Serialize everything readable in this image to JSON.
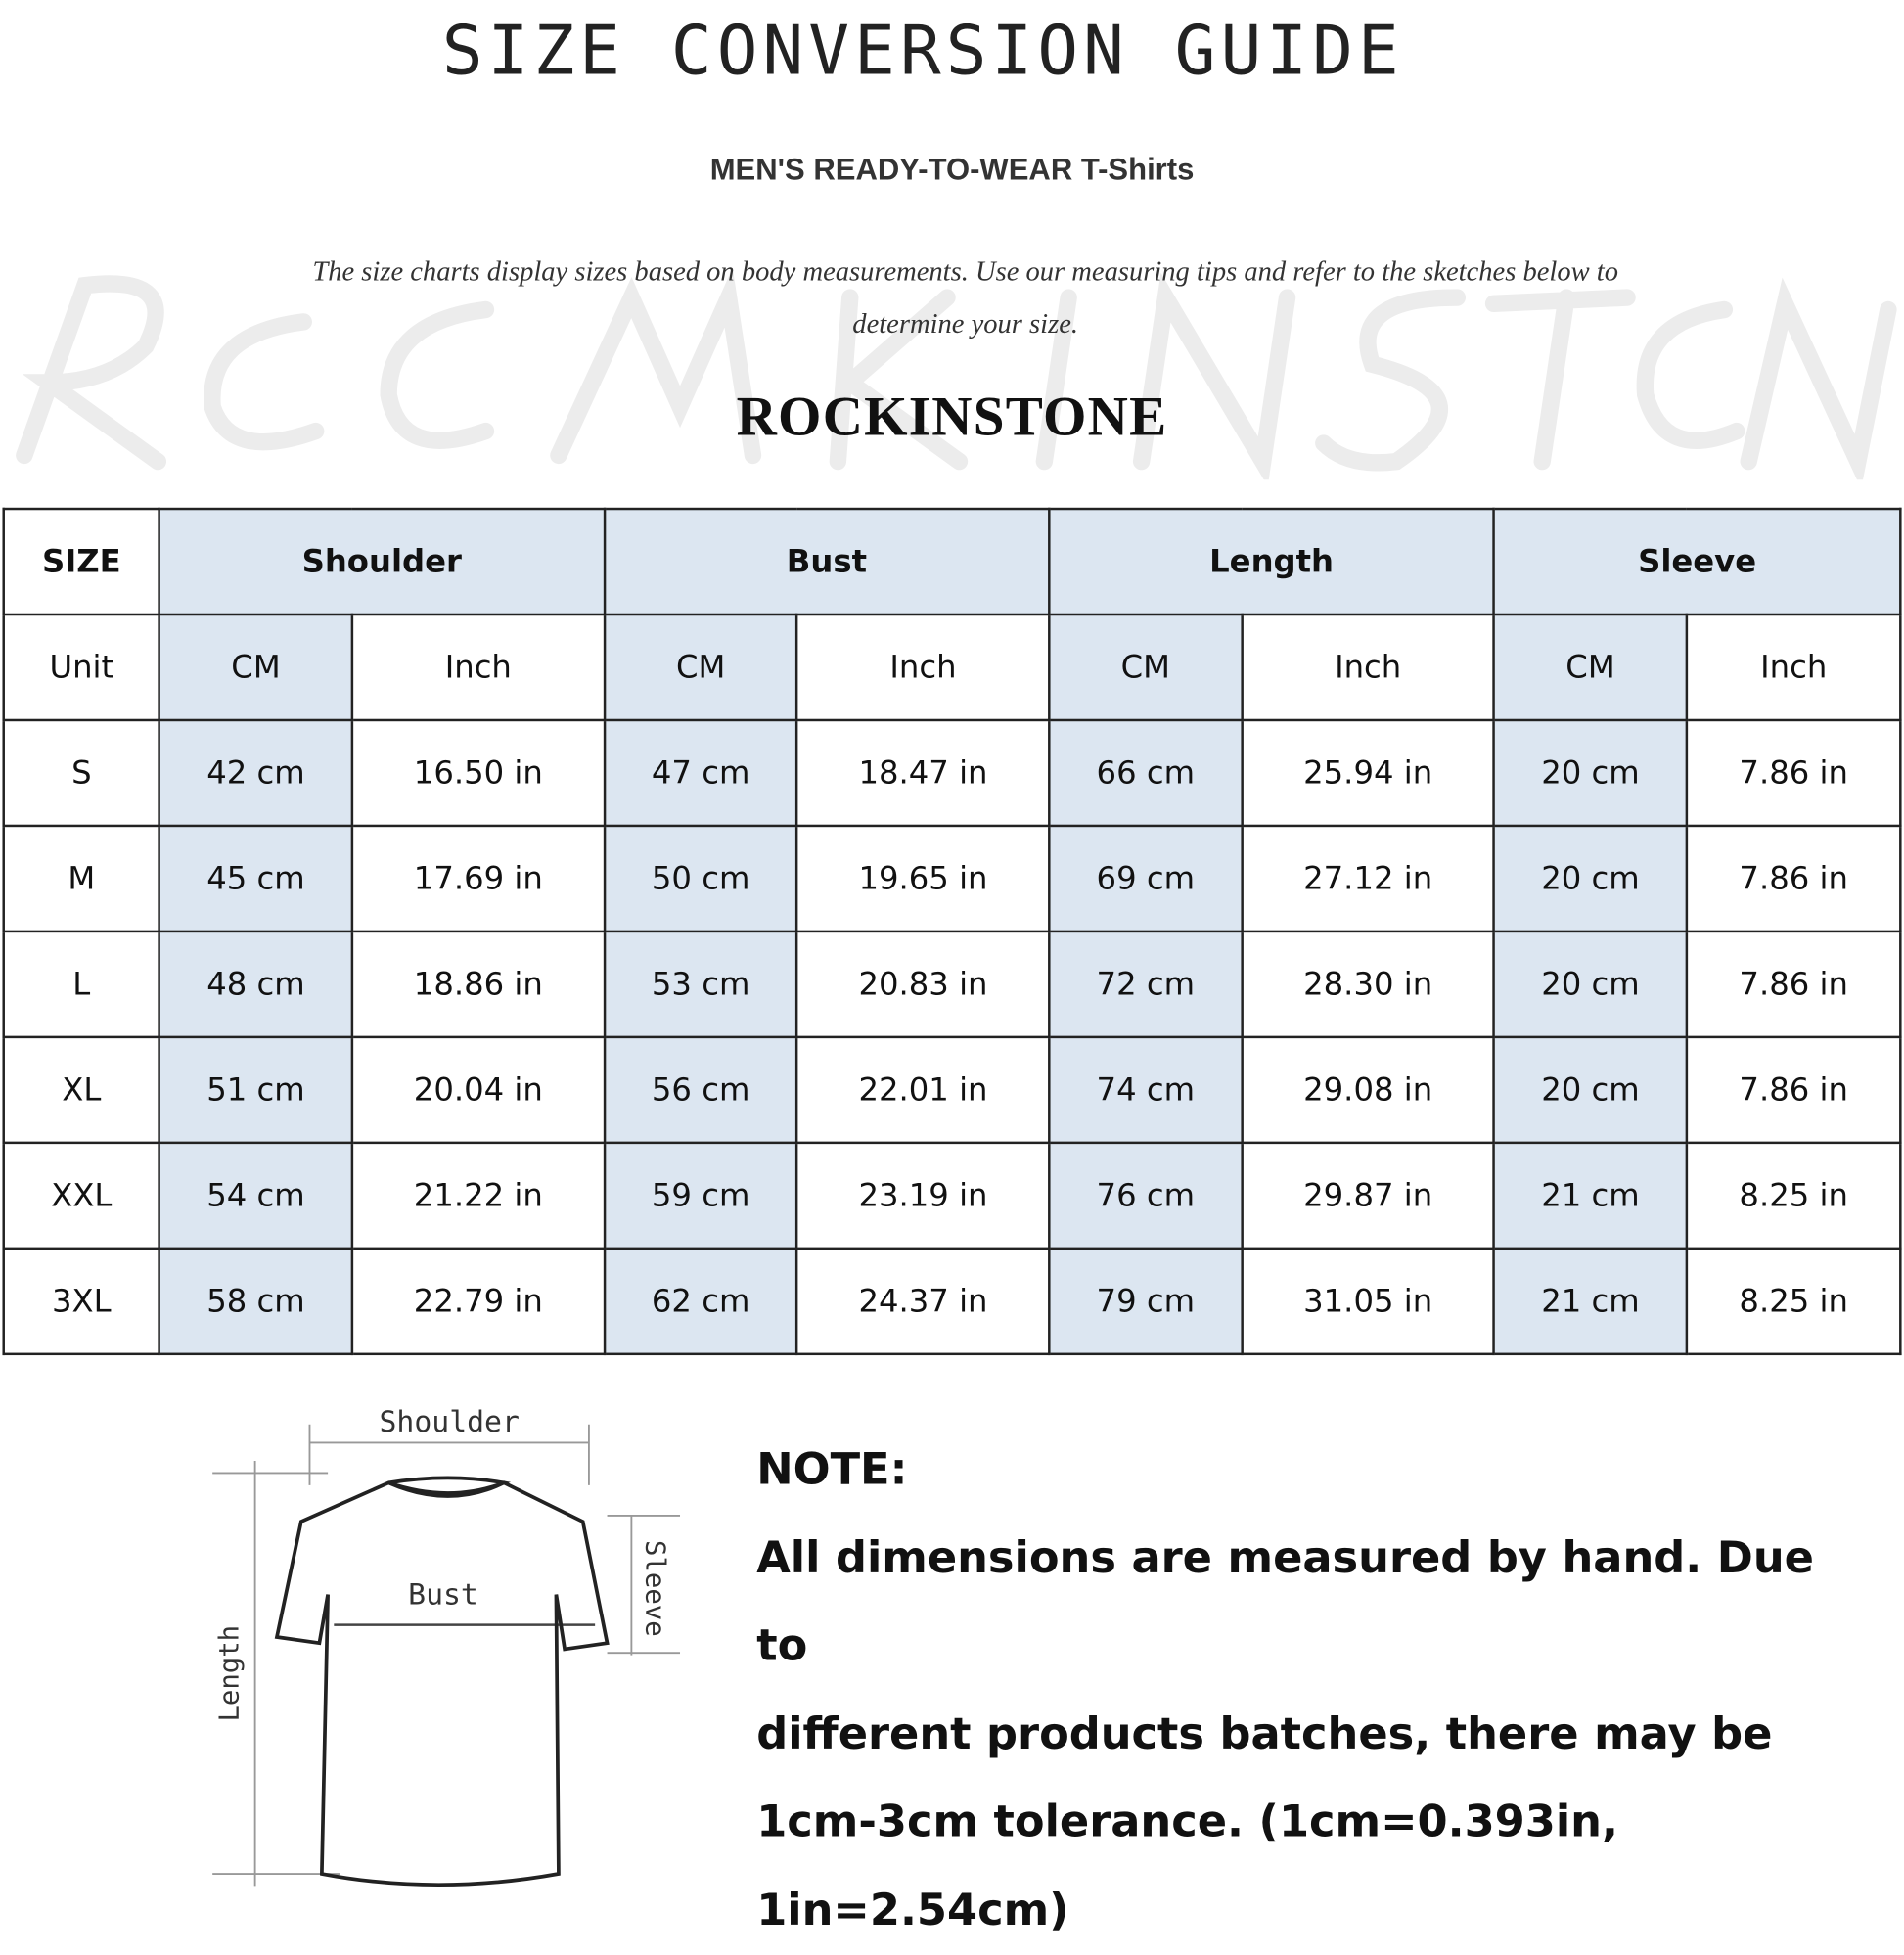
{
  "title": "SIZE CONVERSION GUIDE",
  "subtitle": "MEN'S READY-TO-WEAR T-Shirts",
  "description": "The size charts display sizes based on body measurements. Use our measuring tips and refer to the sketches below to determine your size.",
  "watermark": "ROCKINSTONE",
  "brand": "ROCKINSTONE",
  "table": {
    "size_header": "SIZE",
    "groups": [
      "Shoulder",
      "Bust",
      "Length",
      "Sleeve"
    ],
    "unit_label": "Unit",
    "units": [
      "CM",
      "Inch",
      "CM",
      "Inch",
      "CM",
      "Inch",
      "CM",
      "Inch"
    ],
    "rows": [
      {
        "size": "S",
        "values": [
          "42 cm",
          "16.50 in",
          "47 cm",
          "18.47  in",
          "66 cm",
          "25.94  in",
          "20 cm",
          "7.86  in"
        ]
      },
      {
        "size": "M",
        "values": [
          "45 cm",
          "17.69  in",
          "50 cm",
          "19.65  in",
          "69 cm",
          "27.12  in",
          "20 cm",
          "7.86  in"
        ]
      },
      {
        "size": "L",
        "values": [
          "48 cm",
          "18.86  in",
          "53 cm",
          "20.83  in",
          "72 cm",
          "28.30  in",
          "20 cm",
          "7.86  in"
        ]
      },
      {
        "size": "XL",
        "values": [
          "51 cm",
          "20.04  in",
          "56 cm",
          "22.01  in",
          "74 cm",
          "29.08  in",
          "20 cm",
          "7.86  in"
        ]
      },
      {
        "size": "XXL",
        "values": [
          "54 cm",
          "21.22  in",
          "59 cm",
          "23.19  in",
          "76 cm",
          "29.87  in",
          "21 cm",
          "8.25  in"
        ]
      },
      {
        "size": "3XL",
        "values": [
          "58 cm",
          "22.79  in",
          "62 cm",
          "24.37  in",
          "79 cm",
          "31.05  in",
          "21 cm",
          "8.25  in"
        ]
      }
    ],
    "header_color": "#dce6f1"
  },
  "diagram": {
    "shoulder": "Shoulder",
    "bust": "Bust",
    "length": "Length",
    "sleeve": "Sleeve"
  },
  "note": {
    "heading": "NOTE:",
    "lines": [
      "All dimensions are measured by hand. Due to",
      "different products batches, there may be",
      "1cm-3cm tolerance. (1cm=0.393in, 1in=2.54cm)"
    ]
  }
}
